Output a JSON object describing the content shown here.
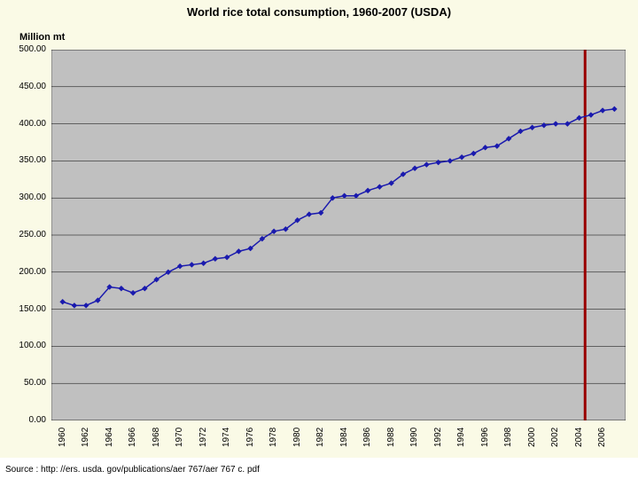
{
  "page_background": "#ffffff",
  "chart_background": "#fafae6",
  "chart": {
    "type": "line",
    "title": "World rice total consumption, 1960-2007 (USDA)",
    "title_fontsize": 13,
    "title_color": "#000000",
    "ylabel": "Million mt",
    "ylabel_fontsize": 11,
    "plot_background": "#c0c0c0",
    "grid_color": "#000000",
    "grid_width": 0.5,
    "axis_color": "#000000",
    "ylim": [
      0,
      500
    ],
    "ytick_step": 50,
    "yticks": [
      0.0,
      50.0,
      100.0,
      150.0,
      200.0,
      250.0,
      300.0,
      350.0,
      400.0,
      450.0,
      500.0
    ],
    "xlim": [
      1960,
      2007
    ],
    "xticks": [
      1960,
      1962,
      1964,
      1966,
      1968,
      1970,
      1972,
      1974,
      1976,
      1978,
      1980,
      1982,
      1984,
      1986,
      1988,
      1990,
      1992,
      1994,
      1996,
      1998,
      2000,
      2002,
      2004,
      2006
    ],
    "xtick_label_rotation": -90,
    "tick_fontsize": 10,
    "series": {
      "values_x": [
        1960,
        1961,
        1962,
        1963,
        1964,
        1965,
        1966,
        1967,
        1968,
        1969,
        1970,
        1971,
        1972,
        1973,
        1974,
        1975,
        1976,
        1977,
        1978,
        1979,
        1980,
        1981,
        1982,
        1983,
        1984,
        1985,
        1986,
        1987,
        1988,
        1989,
        1990,
        1991,
        1992,
        1993,
        1994,
        1995,
        1996,
        1997,
        1998,
        1999,
        2000,
        2001,
        2002,
        2003,
        2004,
        2005,
        2006,
        2007
      ],
      "values_y": [
        160,
        155,
        155,
        162,
        180,
        178,
        172,
        178,
        190,
        200,
        208,
        210,
        212,
        218,
        220,
        228,
        232,
        245,
        255,
        258,
        270,
        278,
        280,
        300,
        303,
        303,
        310,
        315,
        320,
        332,
        340,
        345,
        348,
        350,
        355,
        360,
        368,
        370,
        380,
        390,
        395,
        398,
        400,
        400,
        408,
        412,
        418,
        420
      ],
      "line_color": "#1a1aae",
      "line_width": 1.5,
      "marker": "diamond",
      "marker_size": 6,
      "marker_color": "#1a1aae"
    },
    "reference_line": {
      "x": 2004.5,
      "color": "#990000",
      "width": 3
    }
  },
  "source_text": "Source : http: //ers. usda. gov/publications/aer 767/aer 767 c. pdf"
}
